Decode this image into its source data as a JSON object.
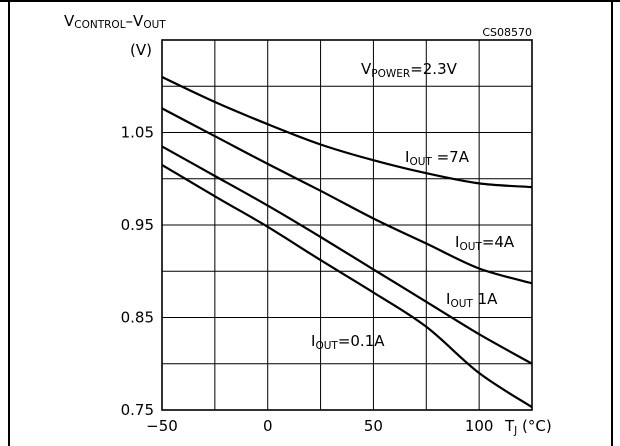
{
  "chart_data": {
    "type": "line",
    "code": "CS08570",
    "ylabel": {
      "main": "V",
      "sub1": "CONTROL",
      "dash": "–V",
      "sub2": "OUT",
      "unit": "(V)"
    },
    "xlabel": {
      "main": "T",
      "sub": "J",
      "unit": " (°C)"
    },
    "condition": {
      "main": "V",
      "sub": "POWER",
      "value": "=2.3V"
    },
    "xlim": [
      -50,
      125
    ],
    "ylim": [
      0.75,
      1.15
    ],
    "x_ticks": [
      -50,
      -25,
      0,
      25,
      50,
      75,
      100,
      125
    ],
    "y_ticks": [
      0.75,
      0.8,
      0.85,
      0.9,
      0.95,
      1.0,
      1.05,
      1.1,
      1.15
    ],
    "x_tick_labels": [
      {
        "value": -50,
        "text": "−50"
      },
      {
        "value": 0,
        "text": "0"
      },
      {
        "value": 50,
        "text": "50"
      },
      {
        "value": 100,
        "text": "100"
      }
    ],
    "y_tick_labels": [
      {
        "value": 0.75,
        "text": "0.75"
      },
      {
        "value": 0.85,
        "text": "0.85"
      },
      {
        "value": 0.95,
        "text": "0.95"
      },
      {
        "value": 1.05,
        "text": "1.05"
      }
    ],
    "series": [
      {
        "name": "I_OUT=7A",
        "x": [
          -50,
          -25,
          0,
          25,
          50,
          75,
          100,
          125
        ],
        "y": [
          1.11,
          1.083,
          1.059,
          1.037,
          1.02,
          1.006,
          0.995,
          0.991
        ]
      },
      {
        "name": "I_OUT=4A",
        "x": [
          -50,
          -25,
          0,
          25,
          50,
          75,
          100,
          125
        ],
        "y": [
          1.076,
          1.046,
          1.016,
          0.987,
          0.957,
          0.93,
          0.903,
          0.887
        ]
      },
      {
        "name": "I_OUT 1A",
        "x": [
          -50,
          -25,
          0,
          25,
          50,
          75,
          100,
          125
        ],
        "y": [
          1.035,
          1.003,
          0.971,
          0.937,
          0.902,
          0.867,
          0.832,
          0.8
        ]
      },
      {
        "name": "I_OUT=0.1A",
        "x": [
          -50,
          -25,
          0,
          25,
          50,
          75,
          100,
          125
        ],
        "y": [
          1.015,
          0.981,
          0.948,
          0.912,
          0.877,
          0.84,
          0.79,
          0.753
        ]
      }
    ],
    "annotations": [
      {
        "main": "I",
        "sub": "OUT",
        "rest": " =7A"
      },
      {
        "main": "I",
        "sub": "OUT",
        "rest": "=4A"
      },
      {
        "main": "I",
        "sub": "OUT",
        "rest": " 1A"
      },
      {
        "main": "I",
        "sub": "OUT",
        "rest": "=0.1A"
      }
    ],
    "grid": true,
    "legend": "none"
  }
}
